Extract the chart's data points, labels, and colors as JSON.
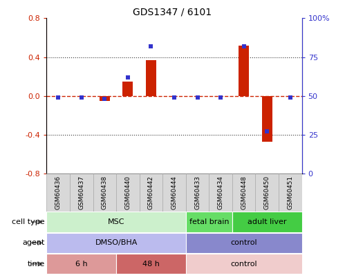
{
  "title": "GDS1347 / 6101",
  "samples": [
    "GSM60436",
    "GSM60437",
    "GSM60438",
    "GSM60440",
    "GSM60442",
    "GSM60444",
    "GSM60433",
    "GSM60434",
    "GSM60448",
    "GSM60450",
    "GSM60451"
  ],
  "log2_ratio": [
    0.0,
    0.0,
    -0.05,
    0.15,
    0.37,
    0.0,
    0.0,
    0.0,
    0.52,
    -0.47,
    0.0
  ],
  "percentile_rank": [
    49,
    49,
    48,
    62,
    82,
    49,
    49,
    49,
    82,
    27,
    49
  ],
  "ylim_left": [
    -0.8,
    0.8
  ],
  "ylim_right": [
    0,
    100
  ],
  "left_ticks": [
    -0.8,
    -0.4,
    0.0,
    0.4,
    0.8
  ],
  "right_ticks": [
    0,
    25,
    50,
    75,
    100
  ],
  "right_tick_labels": [
    "0",
    "25",
    "50",
    "75",
    "100%"
  ],
  "bar_color": "#cc2200",
  "dot_color": "#3333cc",
  "ref_line_color": "#cc2200",
  "dotted_line_color": "#333333",
  "cell_type_groups": [
    {
      "label": "MSC",
      "start": 0,
      "end": 5,
      "color": "#ccf0cc"
    },
    {
      "label": "fetal brain",
      "start": 6,
      "end": 7,
      "color": "#66dd66"
    },
    {
      "label": "adult liver",
      "start": 8,
      "end": 10,
      "color": "#44cc44"
    }
  ],
  "agent_groups": [
    {
      "label": "DMSO/BHA",
      "start": 0,
      "end": 5,
      "color": "#bbbbee"
    },
    {
      "label": "control",
      "start": 6,
      "end": 10,
      "color": "#8888cc"
    }
  ],
  "time_groups": [
    {
      "label": "6 h",
      "start": 0,
      "end": 2,
      "color": "#dd9999"
    },
    {
      "label": "48 h",
      "start": 3,
      "end": 5,
      "color": "#cc6666"
    },
    {
      "label": "control",
      "start": 6,
      "end": 10,
      "color": "#f0cccc"
    }
  ],
  "bar_width": 0.45,
  "dot_size": 18,
  "sample_label_bg": "#d8d8d8",
  "sample_label_border": "#aaaaaa"
}
